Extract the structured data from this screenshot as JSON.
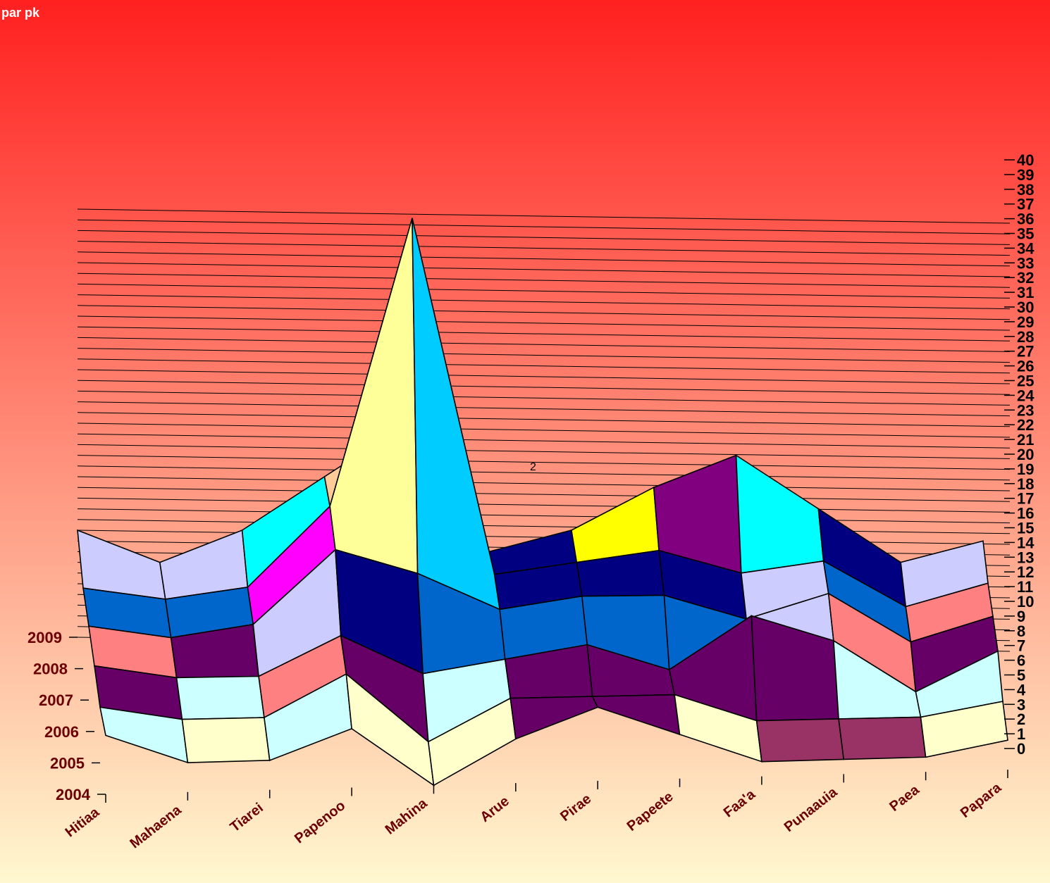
{
  "chart_data": {
    "type": "surface",
    "title": "par pk",
    "annotation": "2",
    "z_ticks": [
      "0",
      "1",
      "2",
      "3",
      "4",
      "5",
      "6",
      "7",
      "8",
      "9",
      "10",
      "11",
      "12",
      "13",
      "14",
      "15",
      "16",
      "17",
      "18",
      "19",
      "20",
      "21",
      "22",
      "23",
      "24",
      "25",
      "26",
      "27",
      "28",
      "29",
      "30",
      "31",
      "32",
      "33",
      "34",
      "35",
      "36",
      "37",
      "38",
      "39",
      "40"
    ],
    "zlim": [
      0,
      40
    ],
    "x_categories": [
      "Hitiaa",
      "Mahaena",
      "Tiarei",
      "Papenoo",
      "Mahina",
      "Arue",
      "Pirae",
      "Papeete",
      "Faa'a",
      "Punaauia",
      "Paea",
      "Papara"
    ],
    "y_categories": [
      "2004",
      "2005",
      "2006",
      "2007",
      "2008",
      "2009"
    ],
    "grid": true,
    "background": {
      "top": "#ff2020",
      "bottom": "#fff8d0"
    },
    "band_colors": [
      "#9999ff",
      "#993366",
      "#ffffcc",
      "#ccffff",
      "#660066",
      "#ff8080",
      "#0066cc",
      "#ccccff",
      "#000080",
      "#ff00ff",
      "#ffff00",
      "#00ffff",
      "#800080",
      "#800000",
      "#008080",
      "#0000ff",
      "#00ccff",
      "#ccffcc",
      "#ffff99",
      "#99ccff",
      "#ff99cc",
      "#cc99ff",
      "#ffcc99",
      "#3366ff",
      "#33cccc",
      "#99cc00",
      "#ffcc00",
      "#ff9900",
      "#ff6600",
      "#666699",
      "#969696",
      "#003366",
      "#339966",
      "#003300"
    ],
    "values": [
      [
        4,
        2,
        2,
        4,
        0,
        3,
        5,
        3,
        1,
        1,
        1,
        2
      ],
      [
        4,
        3,
        3,
        6,
        1,
        4,
        4,
        4,
        2,
        2,
        2,
        3
      ],
      [
        5,
        4,
        4,
        7,
        4,
        5,
        6,
        4,
        8,
        6,
        2,
        5
      ],
      [
        6,
        5,
        6,
        12,
        10,
        7,
        8,
        8,
        6,
        8,
        4,
        6
      ],
      [
        7,
        6,
        7,
        14,
        39,
        8,
        9,
        10,
        8,
        9,
        5,
        7
      ],
      [
        10,
        7,
        10,
        15,
        20,
        8,
        10,
        14,
        17,
        12,
        7,
        9
      ]
    ]
  }
}
